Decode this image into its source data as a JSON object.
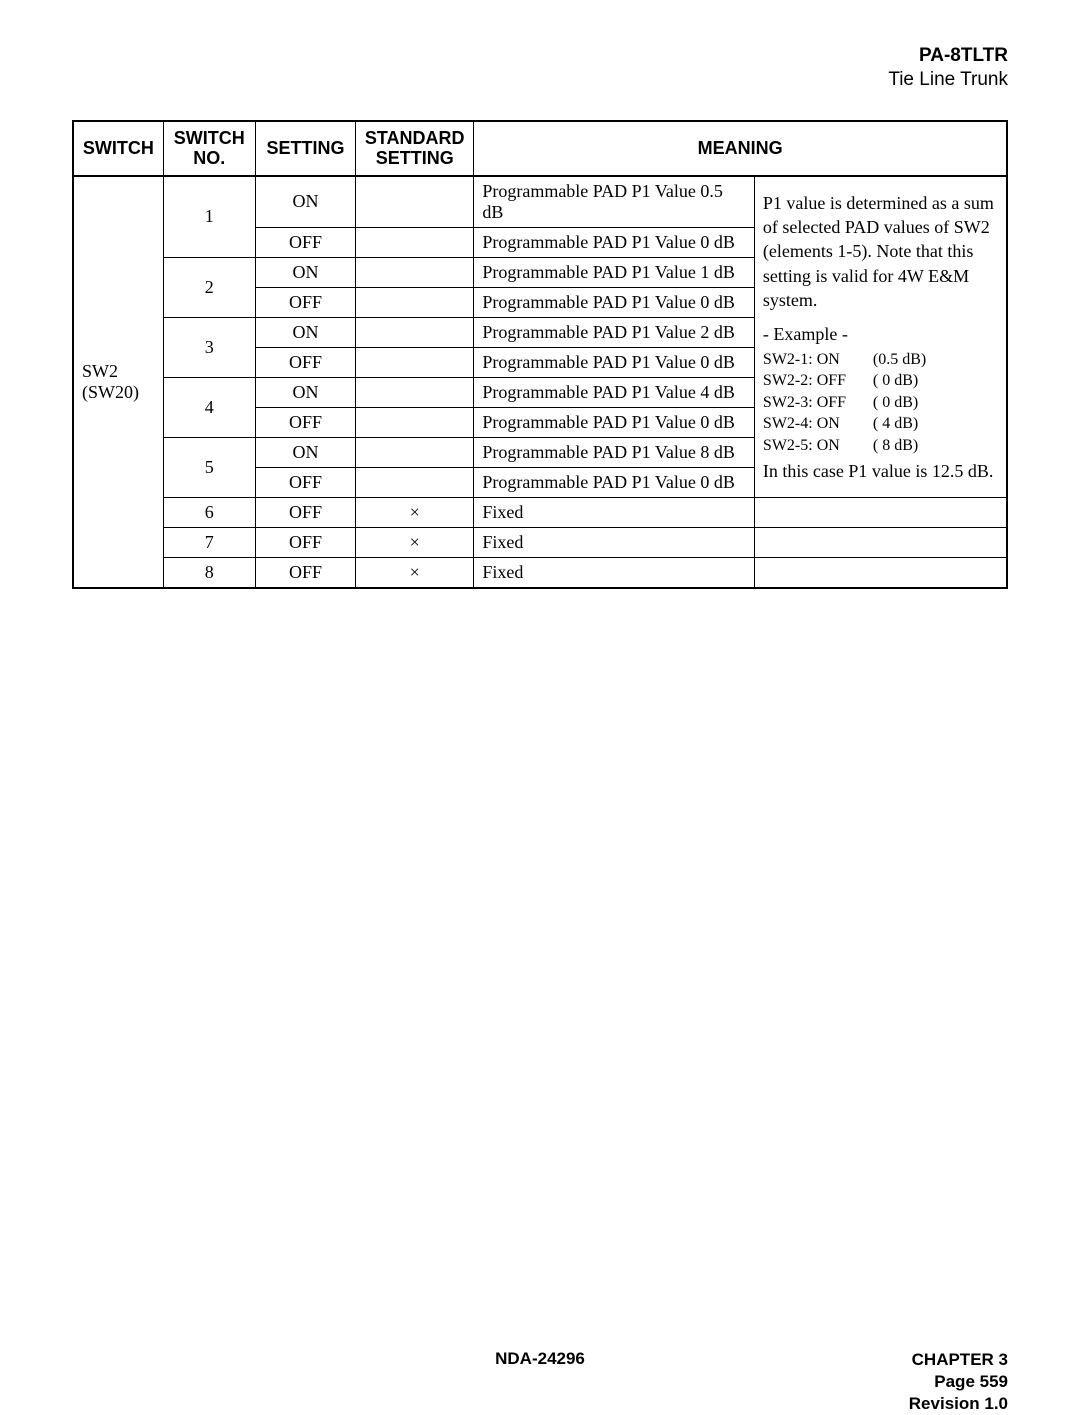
{
  "header": {
    "title": "PA-8TLTR",
    "subtitle": "Tie Line Trunk"
  },
  "table": {
    "headers": {
      "switch": "SWITCH",
      "switch_no": "SWITCH NO.",
      "setting": "SETTING",
      "std_setting": "STANDARD SETTING",
      "meaning": "MEANING"
    },
    "switch_label_a": "SW2",
    "switch_label_b": "(SW20)",
    "rows": [
      {
        "no": "1",
        "setting": "ON",
        "std": "",
        "meaning": "Programmable PAD P1 Value 0.5 dB"
      },
      {
        "no": "",
        "setting": "OFF",
        "std": "",
        "meaning": "Programmable PAD P1 Value 0 dB"
      },
      {
        "no": "2",
        "setting": "ON",
        "std": "",
        "meaning": "Programmable PAD P1 Value 1 dB"
      },
      {
        "no": "",
        "setting": "OFF",
        "std": "",
        "meaning": "Programmable PAD P1 Value 0 dB"
      },
      {
        "no": "3",
        "setting": "ON",
        "std": "",
        "meaning": "Programmable PAD P1 Value 2 dB"
      },
      {
        "no": "",
        "setting": "OFF",
        "std": "",
        "meaning": "Programmable PAD P1 Value 0 dB"
      },
      {
        "no": "4",
        "setting": "ON",
        "std": "",
        "meaning": "Programmable PAD P1 Value 4 dB"
      },
      {
        "no": "",
        "setting": "OFF",
        "std": "",
        "meaning": "Programmable PAD P1 Value 0 dB"
      },
      {
        "no": "5",
        "setting": "ON",
        "std": "",
        "meaning": "Programmable PAD P1 Value 8 dB"
      },
      {
        "no": "",
        "setting": "OFF",
        "std": "",
        "meaning": "Programmable PAD P1 Value 0 dB"
      },
      {
        "no": "6",
        "setting": "OFF",
        "std": "×",
        "meaning": "Fixed"
      },
      {
        "no": "7",
        "setting": "OFF",
        "std": "×",
        "meaning": "Fixed"
      },
      {
        "no": "8",
        "setting": "OFF",
        "std": "×",
        "meaning": "Fixed"
      }
    ],
    "meaning_block": {
      "intro": "P1 value is determined as a sum of selected PAD values of SW2 (elements 1-5). Note that this setting is valid for 4W E&M system.",
      "example_title": "- Example -",
      "example_rows": [
        {
          "lbl": "SW2-1: ON",
          "val": "(0.5 dB)"
        },
        {
          "lbl": "SW2-2: OFF",
          "val": "(   0 dB)"
        },
        {
          "lbl": "SW2-3: OFF",
          "val": "(   0 dB)"
        },
        {
          "lbl": "SW2-4: ON",
          "val": "(   4 dB)"
        },
        {
          "lbl": "SW2-5: ON",
          "val": "(   8 dB)"
        }
      ],
      "outro": "In this case P1 value is 12.5 dB."
    }
  },
  "footer": {
    "doc": "NDA-24296",
    "chapter": "CHAPTER 3",
    "page": "Page 559",
    "rev": "Revision 1.0"
  }
}
